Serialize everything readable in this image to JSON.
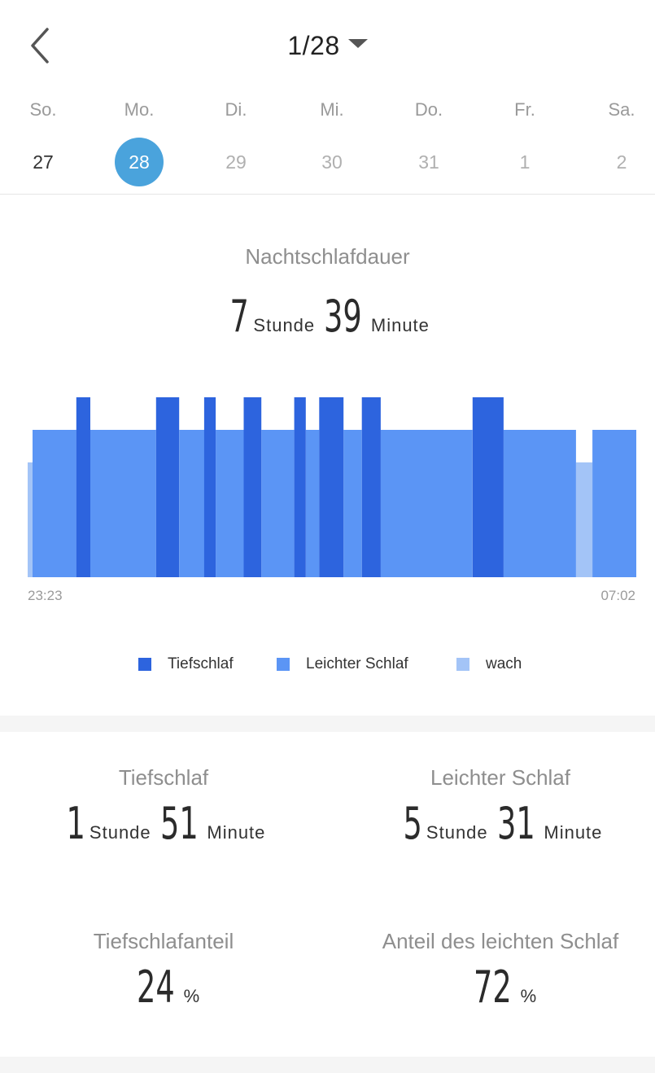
{
  "header": {
    "back_icon": "chevron-left-icon",
    "month_label": "1/28",
    "dropdown_icon": "caret-down-icon"
  },
  "week": {
    "days": [
      {
        "name": "So.",
        "num": "27",
        "state": "current"
      },
      {
        "name": "Mo.",
        "num": "28",
        "state": "selected"
      },
      {
        "name": "Di.",
        "num": "29",
        "state": "future"
      },
      {
        "name": "Mi.",
        "num": "30",
        "state": "future"
      },
      {
        "name": "Do.",
        "num": "31",
        "state": "future"
      },
      {
        "name": "Fr.",
        "num": "1",
        "state": "future"
      },
      {
        "name": "Sa.",
        "num": "2",
        "state": "future"
      }
    ],
    "selected_color": "#4aa3dc"
  },
  "sleep": {
    "title": "Nachtschlafdauer",
    "hours": "7",
    "hours_unit": "Stunde",
    "minutes": "39",
    "minutes_unit": "Minute"
  },
  "chart_data": {
    "type": "bar",
    "x_start_label": "23:23",
    "x_end_label": "07:02",
    "stage_levels": {
      "deep": 3,
      "light": 2,
      "awake": 1
    },
    "colors": {
      "deep": "#2d64de",
      "light": "#5b95f5",
      "awake": "#a3c4f7"
    },
    "segments": [
      {
        "stage": "awake",
        "start": 0.0,
        "end": 0.008
      },
      {
        "stage": "light",
        "start": 0.008,
        "end": 0.08
      },
      {
        "stage": "deep",
        "start": 0.08,
        "end": 0.103
      },
      {
        "stage": "light",
        "start": 0.103,
        "end": 0.211
      },
      {
        "stage": "deep",
        "start": 0.211,
        "end": 0.249
      },
      {
        "stage": "light",
        "start": 0.249,
        "end": 0.29
      },
      {
        "stage": "deep",
        "start": 0.29,
        "end": 0.309
      },
      {
        "stage": "light",
        "start": 0.309,
        "end": 0.355
      },
      {
        "stage": "deep",
        "start": 0.355,
        "end": 0.384
      },
      {
        "stage": "light",
        "start": 0.384,
        "end": 0.438
      },
      {
        "stage": "deep",
        "start": 0.438,
        "end": 0.457
      },
      {
        "stage": "light",
        "start": 0.457,
        "end": 0.479
      },
      {
        "stage": "deep",
        "start": 0.479,
        "end": 0.519
      },
      {
        "stage": "light",
        "start": 0.519,
        "end": 0.549
      },
      {
        "stage": "deep",
        "start": 0.549,
        "end": 0.58
      },
      {
        "stage": "light",
        "start": 0.58,
        "end": 0.731
      },
      {
        "stage": "deep",
        "start": 0.731,
        "end": 0.782
      },
      {
        "stage": "light",
        "start": 0.782,
        "end": 0.901
      },
      {
        "stage": "awake",
        "start": 0.901,
        "end": 0.928
      },
      {
        "stage": "light",
        "start": 0.928,
        "end": 1.0
      }
    ],
    "legend": [
      {
        "key": "deep",
        "label": "Tiefschlaf"
      },
      {
        "key": "light",
        "label": "Leichter Schlaf"
      },
      {
        "key": "awake",
        "label": "wach"
      }
    ]
  },
  "stats": {
    "deep": {
      "title": "Tiefschlaf",
      "hours": "1",
      "hours_unit": "Stunde",
      "minutes": "51",
      "minutes_unit": "Minute"
    },
    "light": {
      "title": "Leichter Schlaf",
      "hours": "5",
      "hours_unit": "Stunde",
      "minutes": "31",
      "minutes_unit": "Minute"
    },
    "deep_ratio": {
      "title": "Tiefschlafanteil",
      "value": "24",
      "unit": "%"
    },
    "light_ratio": {
      "title": "Anteil des leichten Schlaf",
      "value": "72",
      "unit": "%"
    }
  }
}
